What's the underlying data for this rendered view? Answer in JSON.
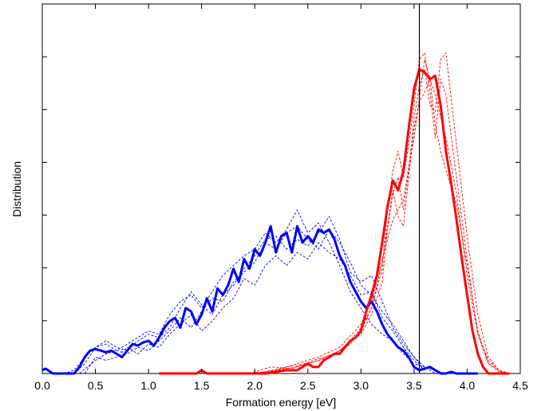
{
  "chart_data": {
    "type": "line",
    "title": "",
    "xlabel": "Formation energy [eV]",
    "ylabel": "Distribution",
    "xlim": [
      0,
      4.5
    ],
    "ylim": [
      0,
      1.0
    ],
    "x_ticks": [
      "0.0",
      "0.5",
      "1.0",
      "1.5",
      "2.0",
      "2.5",
      "3.0",
      "3.5",
      "4.0",
      "4.5"
    ],
    "y_ticks_labeled": false,
    "grid": false,
    "legend": "none",
    "vertical_line_x": 3.55,
    "colors": {
      "blue": "#0000ff",
      "red": "#ff0000",
      "axis": "#000000"
    },
    "series": [
      {
        "color": "blue",
        "style": "solid-thick",
        "x": [
          0.0,
          0.03,
          0.1,
          0.2,
          0.3,
          0.35,
          0.4,
          0.45,
          0.5,
          0.55,
          0.6,
          0.65,
          0.7,
          0.75,
          0.8,
          0.85,
          0.9,
          0.95,
          1.0,
          1.05,
          1.1,
          1.15,
          1.2,
          1.25,
          1.3,
          1.35,
          1.4,
          1.45,
          1.5,
          1.55,
          1.6,
          1.65,
          1.7,
          1.75,
          1.8,
          1.85,
          1.9,
          1.95,
          2.0,
          2.05,
          2.1,
          2.15,
          2.2,
          2.25,
          2.3,
          2.35,
          2.4,
          2.45,
          2.5,
          2.55,
          2.6,
          2.65,
          2.7,
          2.75,
          2.8,
          2.85,
          2.9,
          2.95,
          3.0,
          3.05,
          3.1,
          3.15,
          3.2,
          3.25,
          3.3,
          3.35,
          3.4,
          3.45,
          3.5,
          3.55,
          3.6,
          3.65,
          3.7,
          3.75,
          3.8,
          3.85,
          3.9,
          4.0,
          4.1
        ],
        "y": [
          0.01,
          0.015,
          0.0,
          0.0,
          0.0,
          0.02,
          0.05,
          0.07,
          0.075,
          0.07,
          0.065,
          0.07,
          0.06,
          0.05,
          0.07,
          0.09,
          0.085,
          0.095,
          0.1,
          0.085,
          0.11,
          0.14,
          0.16,
          0.17,
          0.14,
          0.2,
          0.19,
          0.15,
          0.18,
          0.23,
          0.19,
          0.26,
          0.24,
          0.27,
          0.32,
          0.28,
          0.35,
          0.32,
          0.38,
          0.36,
          0.4,
          0.45,
          0.37,
          0.42,
          0.43,
          0.37,
          0.45,
          0.4,
          0.42,
          0.4,
          0.44,
          0.43,
          0.44,
          0.41,
          0.36,
          0.33,
          0.28,
          0.25,
          0.22,
          0.2,
          0.22,
          0.19,
          0.15,
          0.12,
          0.1,
          0.08,
          0.07,
          0.05,
          0.02,
          0.01,
          0.015,
          0.02,
          0.01,
          0.0,
          0.0,
          0.005,
          0.0,
          0.0,
          0.0
        ]
      },
      {
        "color": "red",
        "style": "solid-thick",
        "x": [
          1.1,
          1.3,
          1.45,
          1.5,
          1.55,
          1.7,
          1.9,
          2.1,
          2.2,
          2.3,
          2.4,
          2.45,
          2.5,
          2.55,
          2.6,
          2.65,
          2.7,
          2.75,
          2.8,
          2.85,
          2.9,
          2.95,
          3.0,
          3.05,
          3.1,
          3.15,
          3.2,
          3.25,
          3.3,
          3.35,
          3.4,
          3.45,
          3.5,
          3.55,
          3.6,
          3.65,
          3.7,
          3.75,
          3.8,
          3.85,
          3.9,
          3.95,
          4.0,
          4.05,
          4.1,
          4.15,
          4.2,
          4.3,
          4.4
        ],
        "y": [
          0.0,
          0.0,
          0.0,
          0.01,
          0.0,
          0.0,
          0.0,
          0.0,
          0.005,
          0.01,
          0.01,
          0.02,
          0.03,
          0.02,
          0.02,
          0.04,
          0.05,
          0.06,
          0.06,
          0.08,
          0.1,
          0.11,
          0.13,
          0.19,
          0.24,
          0.3,
          0.4,
          0.51,
          0.59,
          0.56,
          0.62,
          0.75,
          0.87,
          0.93,
          0.92,
          0.9,
          0.91,
          0.82,
          0.68,
          0.58,
          0.47,
          0.35,
          0.24,
          0.13,
          0.06,
          0.02,
          0.0,
          0.0,
          0.0
        ]
      },
      {
        "color": "blue",
        "style": "dashed",
        "x": [
          0.2,
          0.3,
          0.4,
          0.5,
          0.6,
          0.7,
          0.8,
          0.9,
          1.0,
          1.1,
          1.2,
          1.3,
          1.4,
          1.5,
          1.6,
          1.7,
          1.8,
          1.9,
          2.0,
          2.1,
          2.2,
          2.3,
          2.4,
          2.5,
          2.6,
          2.7,
          2.8,
          2.9,
          3.0,
          3.1,
          3.2,
          3.3,
          3.4,
          3.5,
          3.6,
          3.7,
          3.8
        ],
        "y": [
          0.0,
          0.01,
          0.05,
          0.08,
          0.09,
          0.07,
          0.09,
          0.11,
          0.13,
          0.12,
          0.18,
          0.22,
          0.24,
          0.2,
          0.25,
          0.3,
          0.33,
          0.36,
          0.38,
          0.43,
          0.4,
          0.44,
          0.5,
          0.43,
          0.46,
          0.4,
          0.33,
          0.25,
          0.2,
          0.15,
          0.12,
          0.1,
          0.06,
          0.03,
          0.02,
          0.01,
          0.0
        ]
      },
      {
        "color": "blue",
        "style": "dashed",
        "x": [
          0.3,
          0.4,
          0.5,
          0.6,
          0.7,
          0.8,
          0.9,
          1.0,
          1.1,
          1.2,
          1.3,
          1.4,
          1.5,
          1.6,
          1.7,
          1.8,
          1.9,
          2.0,
          2.1,
          2.2,
          2.3,
          2.4,
          2.5,
          2.6,
          2.7,
          2.8,
          2.9,
          3.0,
          3.1,
          3.2,
          3.3,
          3.4,
          3.5,
          3.6,
          3.7
        ],
        "y": [
          0.0,
          0.03,
          0.08,
          0.1,
          0.08,
          0.07,
          0.1,
          0.12,
          0.11,
          0.14,
          0.2,
          0.25,
          0.21,
          0.18,
          0.24,
          0.27,
          0.32,
          0.36,
          0.41,
          0.42,
          0.38,
          0.41,
          0.39,
          0.43,
          0.48,
          0.41,
          0.31,
          0.28,
          0.3,
          0.22,
          0.14,
          0.09,
          0.05,
          0.02,
          0.0
        ]
      },
      {
        "color": "blue",
        "style": "dashed",
        "x": [
          0.35,
          0.5,
          0.6,
          0.7,
          0.8,
          0.9,
          1.0,
          1.1,
          1.2,
          1.3,
          1.4,
          1.5,
          1.6,
          1.7,
          1.8,
          1.9,
          2.0,
          2.1,
          2.2,
          2.3,
          2.4,
          2.5,
          2.6,
          2.7,
          2.8,
          2.9,
          3.0,
          3.1,
          3.2,
          3.3,
          3.4,
          3.5,
          3.6
        ],
        "y": [
          0.0,
          0.04,
          0.06,
          0.07,
          0.06,
          0.08,
          0.07,
          0.1,
          0.13,
          0.17,
          0.14,
          0.19,
          0.23,
          0.22,
          0.28,
          0.31,
          0.34,
          0.4,
          0.38,
          0.43,
          0.45,
          0.41,
          0.38,
          0.44,
          0.4,
          0.34,
          0.27,
          0.24,
          0.19,
          0.15,
          0.1,
          0.05,
          0.01
        ]
      },
      {
        "color": "blue",
        "style": "dashed",
        "x": [
          0.4,
          0.5,
          0.6,
          0.7,
          0.8,
          0.9,
          1.0,
          1.1,
          1.2,
          1.3,
          1.4,
          1.5,
          1.6,
          1.7,
          1.8,
          1.9,
          2.0,
          2.1,
          2.2,
          2.3,
          2.4,
          2.5,
          2.6,
          2.7,
          2.8,
          2.9,
          3.0,
          3.1,
          3.2,
          3.3,
          3.4,
          3.5,
          3.6
        ],
        "y": [
          0.0,
          0.05,
          0.04,
          0.05,
          0.08,
          0.06,
          0.09,
          0.08,
          0.12,
          0.15,
          0.18,
          0.13,
          0.16,
          0.2,
          0.23,
          0.29,
          0.27,
          0.33,
          0.36,
          0.33,
          0.37,
          0.35,
          0.4,
          0.37,
          0.35,
          0.3,
          0.24,
          0.25,
          0.17,
          0.13,
          0.08,
          0.04,
          0.01
        ]
      },
      {
        "color": "red",
        "style": "dashed",
        "x": [
          1.9,
          2.1,
          2.3,
          2.5,
          2.7,
          2.8,
          2.9,
          3.0,
          3.1,
          3.2,
          3.25,
          3.3,
          3.35,
          3.4,
          3.45,
          3.5,
          3.55,
          3.6,
          3.65,
          3.7,
          3.75,
          3.8,
          3.9,
          4.0,
          4.1,
          4.2,
          4.3,
          4.35
        ],
        "y": [
          0.0,
          0.005,
          0.02,
          0.03,
          0.05,
          0.07,
          0.1,
          0.14,
          0.2,
          0.32,
          0.5,
          0.62,
          0.68,
          0.6,
          0.7,
          0.82,
          0.96,
          0.98,
          0.86,
          0.72,
          0.9,
          0.85,
          0.6,
          0.35,
          0.12,
          0.04,
          0.01,
          0.0
        ]
      },
      {
        "color": "red",
        "style": "dashed",
        "x": [
          2.0,
          2.2,
          2.4,
          2.6,
          2.8,
          2.9,
          3.0,
          3.1,
          3.2,
          3.25,
          3.3,
          3.35,
          3.4,
          3.45,
          3.5,
          3.55,
          3.6,
          3.65,
          3.7,
          3.75,
          3.8,
          3.9,
          4.0,
          4.1,
          4.2,
          4.3,
          4.4
        ],
        "y": [
          0.0,
          0.01,
          0.02,
          0.04,
          0.07,
          0.1,
          0.12,
          0.18,
          0.28,
          0.44,
          0.55,
          0.6,
          0.5,
          0.62,
          0.78,
          0.88,
          0.93,
          0.82,
          0.8,
          0.96,
          0.98,
          0.7,
          0.42,
          0.18,
          0.05,
          0.01,
          0.0
        ]
      },
      {
        "color": "red",
        "style": "dashed",
        "x": [
          1.95,
          2.15,
          2.35,
          2.55,
          2.75,
          2.9,
          3.0,
          3.1,
          3.2,
          3.3,
          3.35,
          3.4,
          3.45,
          3.5,
          3.55,
          3.6,
          3.65,
          3.7,
          3.75,
          3.8,
          3.9,
          4.0,
          4.1,
          4.2,
          4.3,
          4.4
        ],
        "y": [
          0.0,
          0.02,
          0.015,
          0.04,
          0.06,
          0.09,
          0.13,
          0.2,
          0.34,
          0.56,
          0.48,
          0.45,
          0.6,
          0.75,
          0.83,
          0.86,
          0.9,
          0.76,
          0.68,
          0.62,
          0.52,
          0.33,
          0.13,
          0.03,
          0.01,
          0.0
        ]
      },
      {
        "color": "red",
        "style": "dashed",
        "x": [
          2.0,
          2.2,
          2.4,
          2.6,
          2.8,
          3.0,
          3.1,
          3.2,
          3.3,
          3.4,
          3.45,
          3.5,
          3.55,
          3.6,
          3.65,
          3.7,
          3.8,
          3.9,
          4.0,
          4.1,
          4.2,
          4.3,
          4.4
        ],
        "y": [
          0.0,
          0.01,
          0.03,
          0.05,
          0.08,
          0.15,
          0.22,
          0.35,
          0.47,
          0.53,
          0.63,
          0.72,
          0.84,
          0.96,
          0.9,
          0.85,
          0.72,
          0.55,
          0.3,
          0.12,
          0.03,
          0.005,
          0.0
        ]
      }
    ]
  }
}
